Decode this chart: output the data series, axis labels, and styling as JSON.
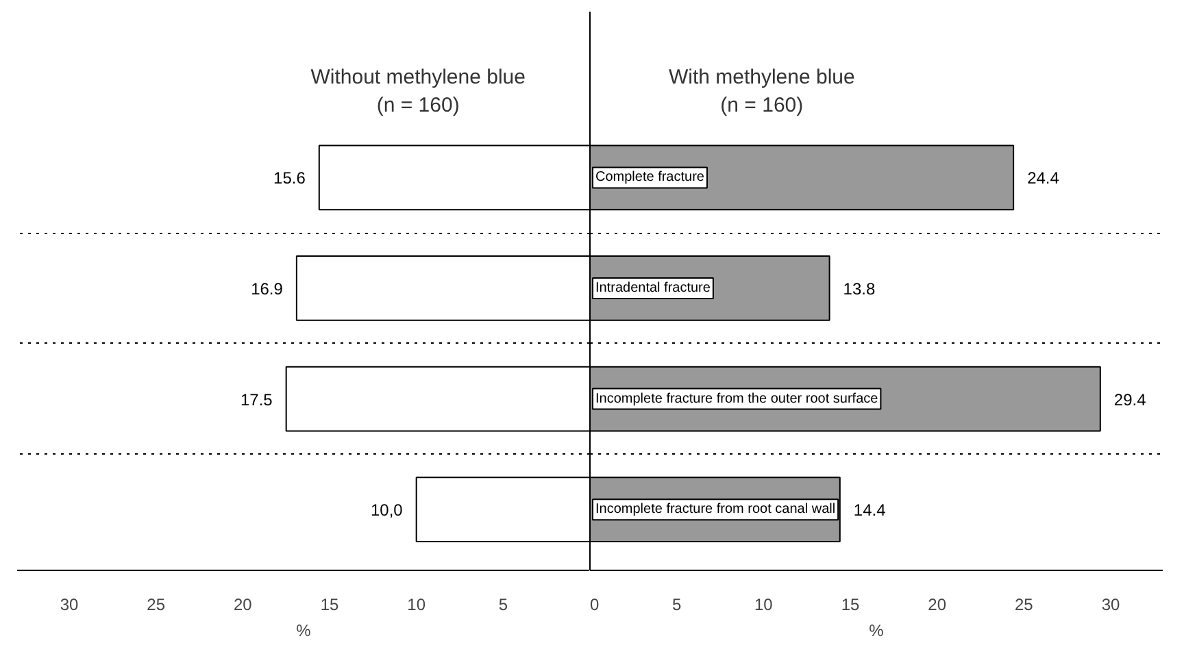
{
  "chart_data": [
    {
      "type": "bar",
      "orientation": "horizontal",
      "categories": [
        null,
        null,
        null,
        null
      ],
      "series": [
        {
          "name": "Without methylene blue\n(n = 160)",
          "color": "#ffffff",
          "values": [
            15.6,
            16.9,
            17.5,
            10.0
          ],
          "value_labels": [
            "15.6",
            "16.9",
            "17.5",
            "10,0"
          ]
        }
      ],
      "xlabel": "%",
      "xlim": [
        33,
        0
      ],
      "xticks": [
        30,
        25,
        20,
        15,
        10,
        5
      ],
      "grid": "y"
    },
    {
      "type": "bar",
      "orientation": "horizontal",
      "categories": [
        "Complete fracture",
        "Intradental fracture",
        "Incomplete fracture from the outer root surface",
        "Incomplete fracture from root canal wall"
      ],
      "series": [
        {
          "name": "With methylene blue\n(n = 160)",
          "color": "#999999",
          "values": [
            24.4,
            13.8,
            29.4,
            14.4
          ],
          "value_labels": [
            "24.4",
            "13.8",
            "29.4",
            "14.4"
          ]
        }
      ],
      "xlabel": "%",
      "xlim": [
        0,
        33
      ],
      "xticks": [
        0,
        5,
        10,
        15,
        20,
        25,
        30
      ],
      "grid": "y"
    }
  ]
}
